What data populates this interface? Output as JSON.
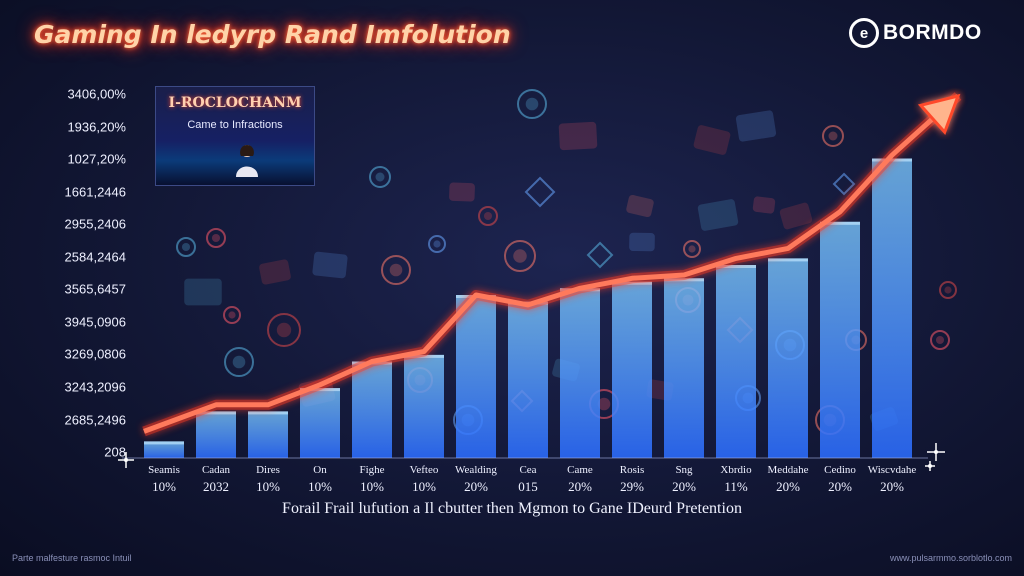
{
  "title": "Gaming In ledyrp Rand Imfolution",
  "brand": {
    "name": "BORMDO",
    "icon": "brand-logo-icon"
  },
  "inset": {
    "title": "I-ROCLOCHANM",
    "subtitle": "Came to Infractions",
    "icon": "presenter-icon"
  },
  "caption": "Forail Frail lufution a Il cbutter then Mgmon to Gane IDeurd Pretention",
  "footer": {
    "left": "Parte malfesture rasmoc Intuil",
    "right": "www.pulsarmmo.sorblotlo.com"
  },
  "colors": {
    "line": "#ff5a3c",
    "arrow_head": "#ffb48c",
    "bar_top": "#7cc8ff",
    "bar_bottom": "#2b6cff",
    "background": "#121735"
  },
  "chart_data": {
    "type": "bar",
    "title": "Gaming In ledyrp Rand Imfolution",
    "y_tick_labels": [
      "3406,00%",
      "1936,20%",
      "1027,20%",
      "1661,2446",
      "2955,2406",
      "2584,2464",
      "3565,6457",
      "3945,0906",
      "3269,0806",
      "3243,2096",
      "2685,2496",
      "208"
    ],
    "categories": [
      "Seamis",
      "Cadan",
      "Dires",
      "On",
      "Fighe",
      "Vefteo",
      "Wealding",
      "Cea",
      "Came",
      "Rosis",
      "Sng",
      "Xbrdio",
      "Meddahe",
      "Cedino",
      "Wiscvdahe"
    ],
    "category_values": [
      "10%",
      "2032",
      "10%",
      "10%",
      "10%",
      "10%",
      "20%",
      "015",
      "20%",
      "29%",
      "20%",
      "11%",
      "20%",
      "20%",
      "20%"
    ],
    "y_tick_count": 12,
    "values": [
      0.5,
      1.4,
      1.4,
      2.1,
      2.9,
      3.1,
      4.9,
      4.7,
      5.1,
      5.3,
      5.4,
      5.8,
      6.0,
      7.1,
      9.0
    ],
    "line_values": [
      0.8,
      1.6,
      1.6,
      2.2,
      2.9,
      3.2,
      4.9,
      4.6,
      5.1,
      5.4,
      5.5,
      6.0,
      6.3,
      7.4,
      9.1
    ],
    "ylim": [
      0,
      11
    ],
    "trend_arrow": true,
    "grid": false,
    "legend": "none"
  }
}
